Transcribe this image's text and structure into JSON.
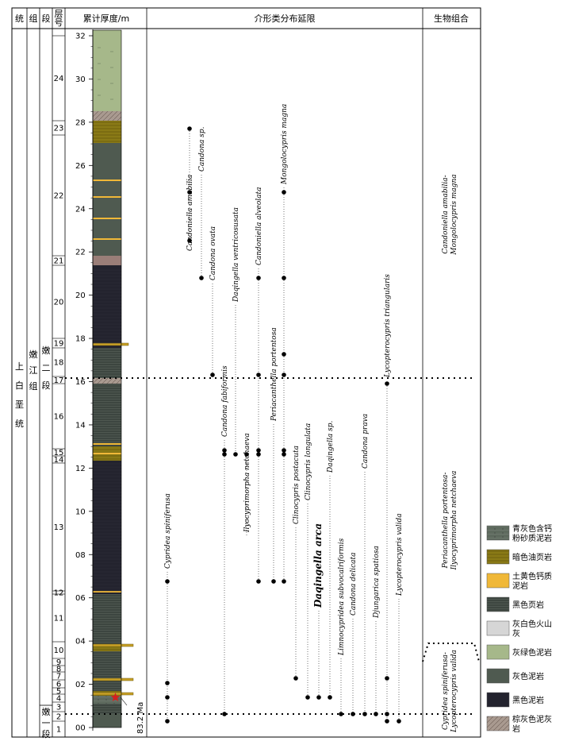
{
  "header": {
    "col_system": "统",
    "col_formation": "组",
    "col_member": "段",
    "col_bed": "层号",
    "col_thickness": "累计厚度/m",
    "col_ranges": "介形类分布延限",
    "col_assemblage": "生物组合"
  },
  "stratigraphy": {
    "system": "上白垩统",
    "formation": "嫩江组",
    "member_upper": "嫩二段",
    "member_lower": "嫩一段"
  },
  "thickness_ticks": [
    "00",
    "02",
    "04",
    "06",
    "08",
    "10",
    "12",
    "14",
    "16",
    "18",
    "20",
    "22",
    "24",
    "26",
    "28",
    "30",
    "32"
  ],
  "beds": [
    "1",
    "2",
    "3",
    "4",
    "5",
    "6",
    "7",
    "8",
    "9",
    "10",
    "11",
    "12",
    "13",
    "14",
    "15",
    "16",
    "17",
    "18",
    "19",
    "20",
    "21",
    "22",
    "23",
    "24"
  ],
  "date_label": "83.2 Ma",
  "species": [
    "Cypridea spiniferusa",
    "Candoniella amabilia",
    "Candona sp.",
    "Candona ovata",
    "Candona fabiformis",
    "Ilyocyprimorpha netchaeva",
    "Daqingella ventricosusata",
    "Candoniella alveolata",
    "Periacanthella portentosa",
    "Mongolocypris magna",
    "Clinocypris postacuta",
    "Clinocypris longulata",
    "Daqingella arca",
    "Limnocypridea subvocalriformis",
    "Daqingella sp.",
    "Candona delicata",
    "Candona prava",
    "Djungarica spatiosa",
    "Lycopterocypris triangularis",
    "Lycopterocypris valida"
  ],
  "assemblages": [
    "Candoniella amabilia-Mongolocypris magna",
    "Periacanthella portentosa-Ilyocyprimorpha netchaeva",
    "Cypridea spiniferusa-Lycopterocypris valida"
  ],
  "legend": [
    {
      "label": "青灰色含钙粉砂质泥岩",
      "color": "#5e6a5e"
    },
    {
      "label": "暗色油页岩",
      "color": "#8a7a16"
    },
    {
      "label": "土黄色钙质泥岩",
      "color": "#f0b838"
    },
    {
      "label": "黑色页岩",
      "color": "#3d4640"
    },
    {
      "label": "灰白色火山灰",
      "color": "#d6d6d6"
    },
    {
      "label": "灰绿色泥岩",
      "color": "#a6b88a"
    },
    {
      "label": "灰色泥岩",
      "color": "#4f5a50"
    },
    {
      "label": "黑色泥岩",
      "color": "#23232e"
    },
    {
      "label": "棕灰色泥灰岩",
      "color": "#a99a90"
    }
  ]
}
